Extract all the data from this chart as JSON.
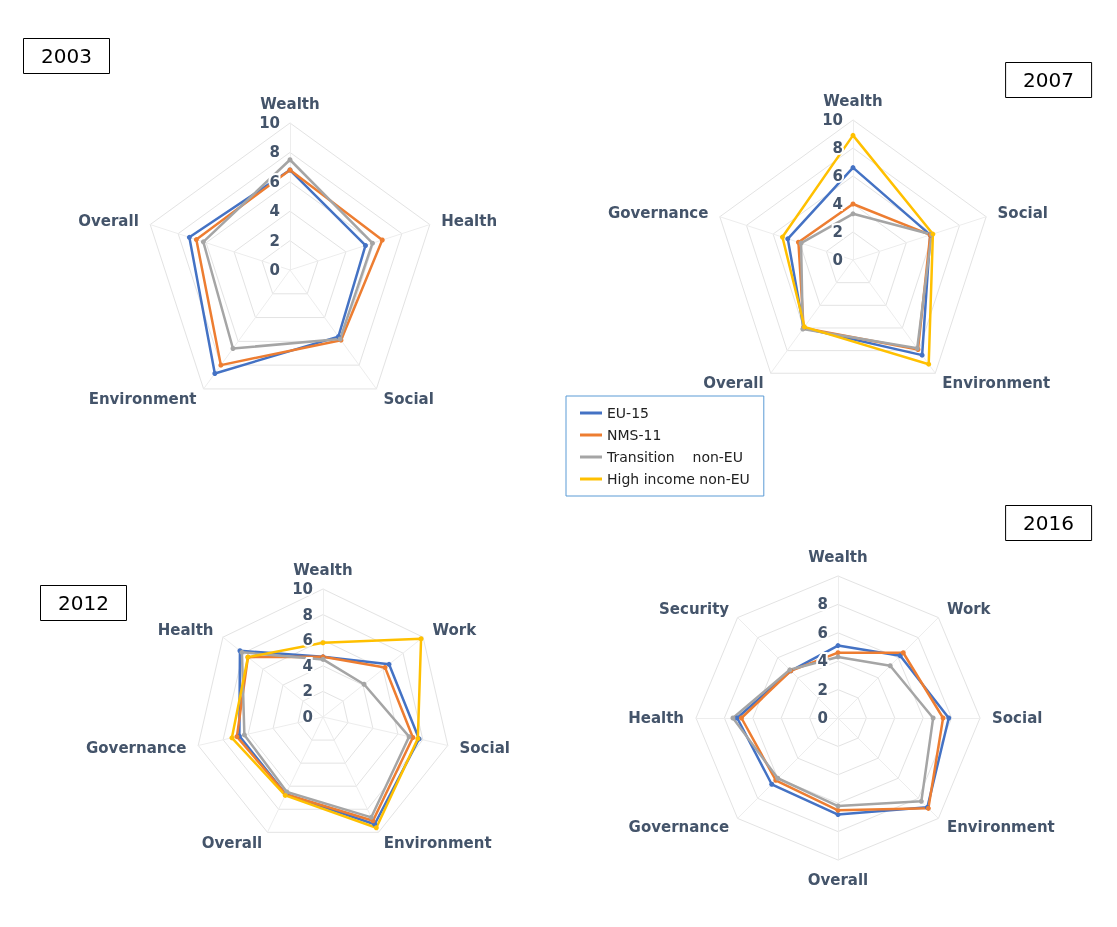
{
  "chart_data": [
    {
      "type": "radar",
      "title": "2003",
      "categories": [
        "Wealth",
        "Health",
        "Social",
        "Environment",
        "Overall"
      ],
      "ylim": [
        0,
        10
      ],
      "yticks": [
        0,
        2,
        4,
        6,
        8,
        10
      ],
      "grid": true,
      "marker": "circle",
      "series": [
        {
          "color": "#4472c4",
          "values": [
            6.8,
            5.4,
            5.6,
            8.7,
            7.2
          ]
        },
        {
          "color": "#ed7d31",
          "values": [
            6.8,
            6.6,
            5.9,
            8.0,
            6.7
          ]
        },
        {
          "color": "#a5a5a5",
          "values": [
            7.5,
            5.9,
            5.8,
            6.6,
            6.2
          ]
        }
      ]
    },
    {
      "type": "radar",
      "title": "2007",
      "categories": [
        "Wealth",
        "Social",
        "Environment",
        "Overall",
        "Governance"
      ],
      "ylim": [
        0,
        10
      ],
      "yticks": [
        0,
        2,
        4,
        6,
        8,
        10
      ],
      "grid": true,
      "marker": "circle",
      "legend": "bottom left",
      "series": [
        {
          "name": "EU-15",
          "color": "#4472c4",
          "values": [
            6.6,
            5.8,
            8.4,
            6.0,
            4.9
          ]
        },
        {
          "name": "NMS-11",
          "color": "#ed7d31",
          "values": [
            4.0,
            5.8,
            7.9,
            6.0,
            4.1
          ]
        },
        {
          "name": "Transition    non-EU",
          "color": "#a5a5a5",
          "values": [
            3.3,
            5.9,
            7.8,
            6.1,
            3.9
          ]
        },
        {
          "name": "High income non-EU",
          "color": "#ffc000",
          "values": [
            8.9,
            6.0,
            9.2,
            5.9,
            5.3
          ]
        }
      ]
    },
    {
      "type": "radar",
      "title": "2012",
      "categories": [
        "Wealth",
        "Work",
        "Social",
        "Environment",
        "Overall",
        "Governance",
        "Health"
      ],
      "ylim": [
        0,
        10
      ],
      "yticks": [
        0,
        2,
        4,
        6,
        8,
        10
      ],
      "grid": true,
      "marker": "circle",
      "series": [
        {
          "color": "#4472c4",
          "values": [
            4.7,
            6.6,
            7.7,
            9.3,
            6.7,
            6.7,
            8.3
          ]
        },
        {
          "color": "#ed7d31",
          "values": [
            4.7,
            6.2,
            7.2,
            9.0,
            6.7,
            6.9,
            7.5
          ]
        },
        {
          "color": "#a5a5a5",
          "values": [
            4.5,
            4.1,
            6.9,
            8.7,
            6.5,
            6.3,
            8.1
          ]
        },
        {
          "color": "#ffc000",
          "values": [
            5.8,
            9.8,
            7.6,
            9.6,
            6.8,
            7.3,
            7.5
          ]
        }
      ]
    },
    {
      "type": "radar",
      "title": "2016",
      "categories": [
        "Wealth",
        "Work",
        "Social",
        "Environment",
        "Overall",
        "Governance",
        "Health",
        "Security"
      ],
      "ylim": [
        0,
        10
      ],
      "yticks": [
        0,
        2,
        4,
        6,
        8
      ],
      "grid": true,
      "marker": "circle",
      "series": [
        {
          "color": "#4472c4",
          "values": [
            5.1,
            6.2,
            7.8,
            8.9,
            6.8,
            6.6,
            7.1,
            4.7
          ]
        },
        {
          "color": "#ed7d31",
          "values": [
            4.6,
            6.5,
            7.4,
            9.0,
            6.5,
            6.2,
            6.8,
            4.7
          ]
        },
        {
          "color": "#a5a5a5",
          "values": [
            4.3,
            5.2,
            6.7,
            8.3,
            6.2,
            6.0,
            7.4,
            4.8
          ]
        }
      ]
    }
  ]
}
